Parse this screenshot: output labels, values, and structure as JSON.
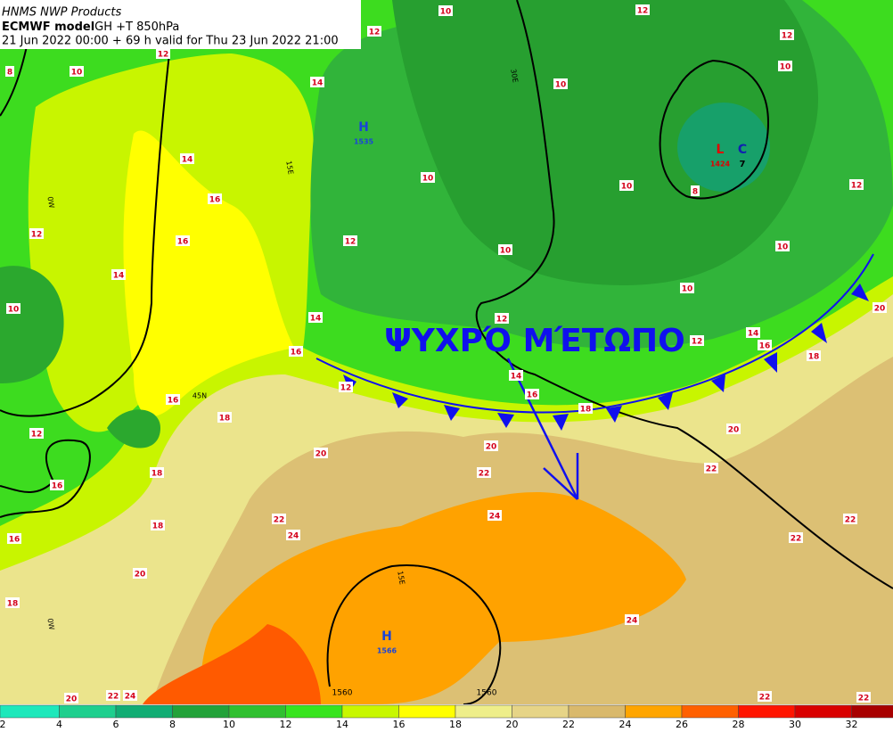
{
  "header": {
    "source": "HNMS NWP Products",
    "model": "ECMWF model",
    "product": "GH +T 850hPa",
    "valid": "21 Jun 2022 00:00 + 69 h valid for Thu 23 Jun 2022 21:00"
  },
  "front_label": "ΨΥΧΡΌ ΜΈΤΩΠΟ",
  "pressure_centers": [
    {
      "letter": "H",
      "value": 1535
    },
    {
      "letter": "L",
      "value": 1424
    },
    {
      "letter": "C",
      "value": 7
    },
    {
      "letter": "H",
      "value": 1566
    }
  ],
  "isobar_labels": [
    1560,
    1560
  ],
  "graticule_labels": [
    "30E",
    "15E",
    "0W",
    "0W",
    "15E",
    "45N"
  ],
  "contour_labels": [
    10,
    12,
    12,
    12,
    12,
    10,
    8,
    10,
    10,
    14,
    14,
    10,
    10,
    8,
    12,
    16,
    12,
    16,
    12,
    10,
    10,
    14,
    10,
    10,
    14,
    12,
    20,
    12,
    14,
    16,
    16,
    18,
    14,
    16,
    16,
    18,
    18,
    12,
    20,
    20,
    20,
    22,
    22,
    18,
    16,
    24,
    22,
    22,
    24,
    18,
    16,
    22,
    20,
    18,
    24,
    20,
    22,
    24,
    22,
    22,
    12
  ],
  "colorbar": {
    "labels": [
      2,
      4,
      6,
      8,
      10,
      12,
      14,
      16,
      18,
      20,
      22,
      24,
      26,
      28,
      30,
      32
    ],
    "colors": [
      "#1ee8bb",
      "#1fcf8e",
      "#12ad74",
      "#23a23a",
      "#30c030",
      "#38e41f",
      "#c8f700",
      "#ffff00",
      "#eeee8a",
      "#e6d487",
      "#d9b96c",
      "#ffa500",
      "#ff6000",
      "#ff1500",
      "#d90000",
      "#a80000"
    ]
  }
}
